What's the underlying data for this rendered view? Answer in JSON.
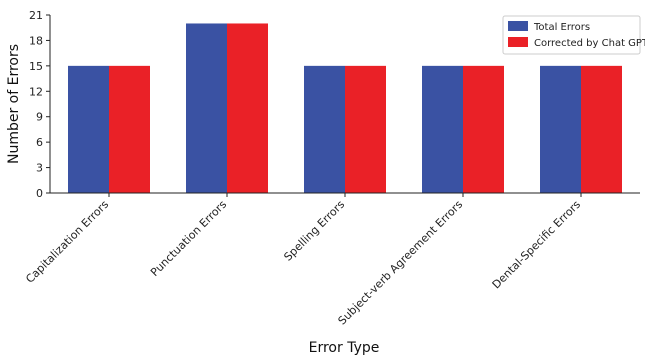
{
  "chart_data": {
    "type": "bar",
    "categories": [
      "Capitalization Errors",
      "Punctuation Errors",
      "Spelling Errors",
      "Subject-verb Agreement Errors",
      "Dental-Specific Errors"
    ],
    "series": [
      {
        "name": "Total Errors",
        "color": "#3a52a3",
        "values": [
          15,
          20,
          15,
          15,
          15
        ]
      },
      {
        "name": "Corrected by Chat GPT",
        "color": "#ea2127",
        "values": [
          15,
          20,
          15,
          15,
          15
        ]
      }
    ],
    "xlabel": "Error Type",
    "ylabel": "Number of Errors",
    "ylim": [
      0,
      21
    ],
    "yticks": [
      0,
      3,
      6,
      9,
      12,
      15,
      18,
      21
    ],
    "grid": false,
    "legend_position": "top-right"
  }
}
